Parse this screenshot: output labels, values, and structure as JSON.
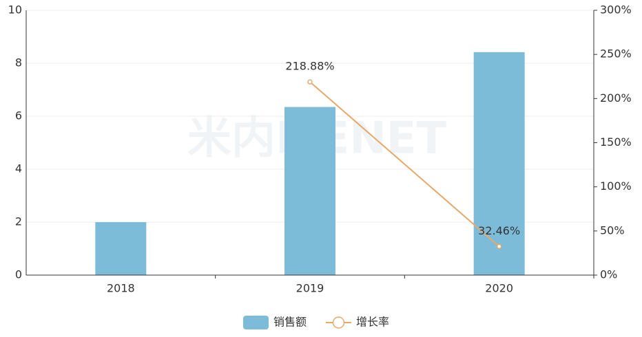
{
  "chart_data": {
    "type": "bar",
    "watermark": "米内MENET",
    "categories": [
      "2018",
      "2019",
      "2020"
    ],
    "series": [
      {
        "name": "销售额",
        "type": "bar",
        "color": "#7dbcd9",
        "values": [
          2.0,
          6.35,
          8.42
        ]
      },
      {
        "name": "增长率",
        "type": "line",
        "axis": "y2",
        "color": "#e6a96c",
        "values": [
          null,
          218.88,
          32.46
        ],
        "value_labels": [
          null,
          "218.88%",
          "32.46%"
        ]
      }
    ],
    "ylim": [
      0,
      10
    ],
    "yticks": [
      0,
      2,
      4,
      6,
      8,
      10
    ],
    "y2lim": [
      0,
      300
    ],
    "y2ticks": [
      {
        "value": 0,
        "label": "0%"
      },
      {
        "value": 50,
        "label": "50%"
      },
      {
        "value": 100,
        "label": "100%"
      },
      {
        "value": 150,
        "label": "150%"
      },
      {
        "value": 200,
        "label": "200%"
      },
      {
        "value": 250,
        "label": "250%"
      },
      {
        "value": 300,
        "label": "300%"
      }
    ],
    "grid": true,
    "legend": "bottom"
  }
}
